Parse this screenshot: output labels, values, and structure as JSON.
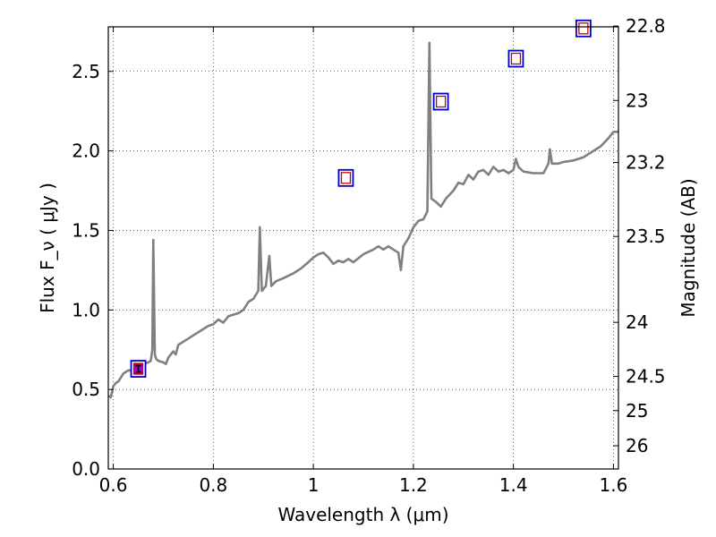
{
  "chart_data": {
    "type": "line",
    "title": "",
    "xlabel": "Wavelength  λ (μm)",
    "ylabel": "Flux  F_ν  ( μJy )",
    "ylabel_right": "Magnitude (AB)",
    "xlim": [
      0.59,
      1.61
    ],
    "ylim": [
      0,
      2.78
    ],
    "grid": true,
    "x_ticks": [
      {
        "value": 0.6,
        "label": "0.6"
      },
      {
        "value": 0.8,
        "label": "0.8"
      },
      {
        "value": 1.0,
        "label": "1"
      },
      {
        "value": 1.2,
        "label": "1.2"
      },
      {
        "value": 1.4,
        "label": "1.4"
      },
      {
        "value": 1.6,
        "label": "1.6"
      }
    ],
    "y_ticks": [
      {
        "value": 0.0,
        "label": "0.0"
      },
      {
        "value": 0.5,
        "label": "0.5"
      },
      {
        "value": 1.0,
        "label": "1.0"
      },
      {
        "value": 1.5,
        "label": "1.5"
      },
      {
        "value": 2.0,
        "label": "2.0"
      },
      {
        "value": 2.5,
        "label": "2.5"
      }
    ],
    "y2_ticks": [
      {
        "label": "22.8",
        "flux": 2.785
      },
      {
        "label": "23",
        "flux": 2.317
      },
      {
        "label": "23.2",
        "flux": 1.927
      },
      {
        "label": "23.5",
        "flux": 1.462
      },
      {
        "label": "24",
        "flux": 0.922
      },
      {
        "label": "24.5",
        "flux": 0.582
      },
      {
        "label": "25",
        "flux": 0.367
      },
      {
        "label": "26",
        "flux": 0.146
      }
    ],
    "colors": {
      "spectrum": "#808080",
      "model_marker": "#0000cc",
      "observed_marker": "#cc0000",
      "detection_fill": "#aa00cc"
    },
    "series": [
      {
        "kind": "spectrum",
        "points": [
          [
            0.59,
            0.46
          ],
          [
            0.595,
            0.45
          ],
          [
            0.6,
            0.52
          ],
          [
            0.605,
            0.54
          ],
          [
            0.61,
            0.55
          ],
          [
            0.62,
            0.6
          ],
          [
            0.63,
            0.62
          ],
          [
            0.64,
            0.62
          ],
          [
            0.65,
            0.64
          ],
          [
            0.66,
            0.66
          ],
          [
            0.67,
            0.67
          ],
          [
            0.675,
            0.68
          ],
          [
            0.678,
            0.75
          ],
          [
            0.68,
            1.44
          ],
          [
            0.683,
            0.72
          ],
          [
            0.686,
            0.69
          ],
          [
            0.69,
            0.68
          ],
          [
            0.7,
            0.67
          ],
          [
            0.705,
            0.66
          ],
          [
            0.71,
            0.7
          ],
          [
            0.72,
            0.74
          ],
          [
            0.725,
            0.72
          ],
          [
            0.73,
            0.78
          ],
          [
            0.74,
            0.8
          ],
          [
            0.75,
            0.82
          ],
          [
            0.76,
            0.84
          ],
          [
            0.77,
            0.86
          ],
          [
            0.78,
            0.88
          ],
          [
            0.79,
            0.9
          ],
          [
            0.8,
            0.91
          ],
          [
            0.81,
            0.94
          ],
          [
            0.82,
            0.92
          ],
          [
            0.83,
            0.96
          ],
          [
            0.84,
            0.97
          ],
          [
            0.85,
            0.98
          ],
          [
            0.86,
            1.0
          ],
          [
            0.87,
            1.05
          ],
          [
            0.88,
            1.07
          ],
          [
            0.89,
            1.12
          ],
          [
            0.893,
            1.52
          ],
          [
            0.897,
            1.12
          ],
          [
            0.905,
            1.15
          ],
          [
            0.912,
            1.34
          ],
          [
            0.916,
            1.15
          ],
          [
            0.925,
            1.18
          ],
          [
            0.94,
            1.2
          ],
          [
            0.96,
            1.23
          ],
          [
            0.975,
            1.26
          ],
          [
            0.99,
            1.3
          ],
          [
            1.0,
            1.33
          ],
          [
            1.01,
            1.35
          ],
          [
            1.02,
            1.36
          ],
          [
            1.03,
            1.33
          ],
          [
            1.04,
            1.29
          ],
          [
            1.05,
            1.31
          ],
          [
            1.06,
            1.3
          ],
          [
            1.07,
            1.32
          ],
          [
            1.08,
            1.3
          ],
          [
            1.1,
            1.35
          ],
          [
            1.12,
            1.38
          ],
          [
            1.13,
            1.4
          ],
          [
            1.14,
            1.38
          ],
          [
            1.15,
            1.4
          ],
          [
            1.16,
            1.38
          ],
          [
            1.17,
            1.36
          ],
          [
            1.175,
            1.25
          ],
          [
            1.18,
            1.4
          ],
          [
            1.19,
            1.45
          ],
          [
            1.2,
            1.52
          ],
          [
            1.21,
            1.56
          ],
          [
            1.22,
            1.57
          ],
          [
            1.228,
            1.62
          ],
          [
            1.232,
            2.68
          ],
          [
            1.236,
            1.7
          ],
          [
            1.245,
            1.68
          ],
          [
            1.255,
            1.65
          ],
          [
            1.265,
            1.7
          ],
          [
            1.28,
            1.75
          ],
          [
            1.29,
            1.8
          ],
          [
            1.3,
            1.79
          ],
          [
            1.31,
            1.85
          ],
          [
            1.32,
            1.82
          ],
          [
            1.33,
            1.87
          ],
          [
            1.34,
            1.88
          ],
          [
            1.35,
            1.85
          ],
          [
            1.36,
            1.9
          ],
          [
            1.37,
            1.87
          ],
          [
            1.38,
            1.88
          ],
          [
            1.39,
            1.86
          ],
          [
            1.4,
            1.88
          ],
          [
            1.405,
            1.95
          ],
          [
            1.41,
            1.9
          ],
          [
            1.42,
            1.87
          ],
          [
            1.44,
            1.86
          ],
          [
            1.46,
            1.86
          ],
          [
            1.47,
            1.92
          ],
          [
            1.473,
            2.01
          ],
          [
            1.477,
            1.92
          ],
          [
            1.49,
            1.92
          ],
          [
            1.5,
            1.93
          ],
          [
            1.52,
            1.94
          ],
          [
            1.54,
            1.96
          ],
          [
            1.56,
            2.0
          ],
          [
            1.575,
            2.03
          ],
          [
            1.59,
            2.08
          ],
          [
            1.6,
            2.12
          ],
          [
            1.61,
            2.12
          ]
        ]
      },
      {
        "kind": "model_photometry",
        "points": [
          [
            0.65,
            0.63
          ],
          [
            1.065,
            1.83
          ],
          [
            1.255,
            2.31
          ],
          [
            1.405,
            2.58
          ],
          [
            1.54,
            2.77
          ]
        ]
      },
      {
        "kind": "observed_photometry",
        "points": [
          [
            0.65,
            0.63
          ],
          [
            1.065,
            1.83
          ],
          [
            1.255,
            2.31
          ],
          [
            1.405,
            2.58
          ],
          [
            1.54,
            2.77
          ]
        ]
      },
      {
        "kind": "detection",
        "points": [
          [
            0.65,
            0.63
          ]
        ],
        "error": [
          [
            0.61,
            0.65
          ]
        ]
      }
    ]
  }
}
